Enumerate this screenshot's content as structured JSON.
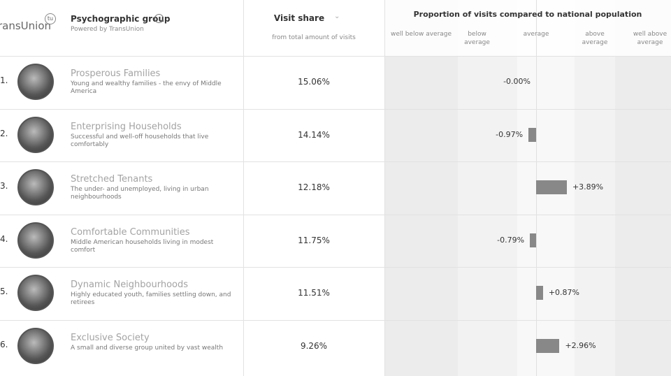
{
  "header": {
    "logo": "ransUnion",
    "logo_badge": "tu",
    "group_title": "Psychographic group",
    "group_subtitle": "Powered by TransUnion",
    "visit_title": "Visit share",
    "visit_subtitle": "from total amount of visits",
    "proportion_title": "Proportion of visits compared to national population",
    "bands": [
      "well below average",
      "below average",
      "average",
      "above average",
      "well above average"
    ]
  },
  "table": {
    "rows": [
      {
        "rank": "1.",
        "name": "Prosperous Families",
        "description": "Young and wealthy families - the envy of Middle America",
        "visit_share": "15.06%",
        "proportion": {
          "value": 0,
          "label": "-0.00%"
        }
      },
      {
        "rank": "2.",
        "name": "Enterprising Households",
        "description": "Successful and well-off households that live comfortably",
        "visit_share": "14.14%",
        "proportion": {
          "value": -0.97,
          "label": "-0.97%"
        }
      },
      {
        "rank": "3.",
        "name": "Stretched Tenants",
        "description": "The under- and unemployed, living in urban neighbourhoods",
        "visit_share": "12.18%",
        "proportion": {
          "value": 3.89,
          "label": "+3.89%"
        }
      },
      {
        "rank": "4.",
        "name": "Comfortable Communities",
        "description": "Middle American households living in modest comfort",
        "visit_share": "11.75%",
        "proportion": {
          "value": -0.79,
          "label": "-0.79%"
        }
      },
      {
        "rank": "5.",
        "name": "Dynamic Neighbourhoods",
        "description": "Highly educated youth, families settling down, and retirees",
        "visit_share": "11.51%",
        "proportion": {
          "value": 0.87,
          "label": "+0.87%"
        }
      },
      {
        "rank": "6.",
        "name": "Exclusive Society",
        "description": "A small and diverse group united by vast wealth",
        "visit_share": "9.26%",
        "proportion": {
          "value": 2.96,
          "label": "+2.96%"
        }
      }
    ]
  }
}
